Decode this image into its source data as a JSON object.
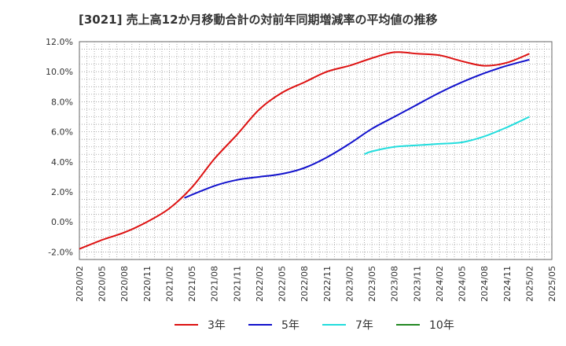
{
  "chart_data": {
    "type": "line",
    "title": "[3021]  売上高12か月移動合計の対前年同期増減率の平均値の推移",
    "xlabel": "",
    "ylabel": "",
    "ylim": [
      -2.5,
      12.0
    ],
    "y_ticks": [
      -2.0,
      0.0,
      2.0,
      4.0,
      6.0,
      8.0,
      10.0,
      12.0
    ],
    "y_tick_labels": [
      "-2.0%",
      "0.0%",
      "2.0%",
      "4.0%",
      "6.0%",
      "8.0%",
      "10.0%",
      "12.0%"
    ],
    "x_tick_labels": [
      "2020/02",
      "2020/05",
      "2020/08",
      "2020/11",
      "2021/02",
      "2021/05",
      "2021/08",
      "2021/11",
      "2022/02",
      "2022/05",
      "2022/08",
      "2022/11",
      "2023/02",
      "2023/05",
      "2023/08",
      "2023/11",
      "2024/02",
      "2024/05",
      "2024/08",
      "2024/11",
      "2025/02",
      "2025/05"
    ],
    "grid": true,
    "legend_position": "bottom",
    "series": [
      {
        "name": "3年",
        "color": "#dd1111",
        "values": [
          [
            "2020/02",
            -1.8
          ],
          [
            "2020/05",
            -1.2
          ],
          [
            "2020/08",
            -0.7
          ],
          [
            "2020/11",
            0.0
          ],
          [
            "2021/02",
            0.9
          ],
          [
            "2021/05",
            2.3
          ],
          [
            "2021/08",
            4.2
          ],
          [
            "2021/11",
            5.8
          ],
          [
            "2022/02",
            7.5
          ],
          [
            "2022/05",
            8.6
          ],
          [
            "2022/08",
            9.3
          ],
          [
            "2022/11",
            10.0
          ],
          [
            "2023/02",
            10.4
          ],
          [
            "2023/05",
            10.9
          ],
          [
            "2023/08",
            11.3
          ],
          [
            "2023/11",
            11.2
          ],
          [
            "2024/02",
            11.1
          ],
          [
            "2024/05",
            10.7
          ],
          [
            "2024/08",
            10.4
          ],
          [
            "2024/11",
            10.6
          ],
          [
            "2025/02",
            11.2
          ]
        ]
      },
      {
        "name": "5年",
        "color": "#1111cc",
        "values": [
          [
            "2021/04",
            1.6
          ],
          [
            "2021/08",
            2.4
          ],
          [
            "2021/11",
            2.8
          ],
          [
            "2022/02",
            3.0
          ],
          [
            "2022/05",
            3.2
          ],
          [
            "2022/08",
            3.6
          ],
          [
            "2022/11",
            4.3
          ],
          [
            "2023/02",
            5.2
          ],
          [
            "2023/05",
            6.2
          ],
          [
            "2023/08",
            7.0
          ],
          [
            "2023/11",
            7.8
          ],
          [
            "2024/02",
            8.6
          ],
          [
            "2024/05",
            9.3
          ],
          [
            "2024/08",
            9.9
          ],
          [
            "2024/11",
            10.4
          ],
          [
            "2025/02",
            10.8
          ]
        ]
      },
      {
        "name": "7年",
        "color": "#22dddd",
        "values": [
          [
            "2023/04",
            4.5
          ],
          [
            "2023/05",
            4.7
          ],
          [
            "2023/08",
            5.0
          ],
          [
            "2023/11",
            5.1
          ],
          [
            "2024/02",
            5.2
          ],
          [
            "2024/05",
            5.3
          ],
          [
            "2024/08",
            5.7
          ],
          [
            "2024/11",
            6.3
          ],
          [
            "2025/02",
            7.0
          ]
        ]
      },
      {
        "name": "10年",
        "color": "#228822",
        "values": []
      }
    ]
  }
}
